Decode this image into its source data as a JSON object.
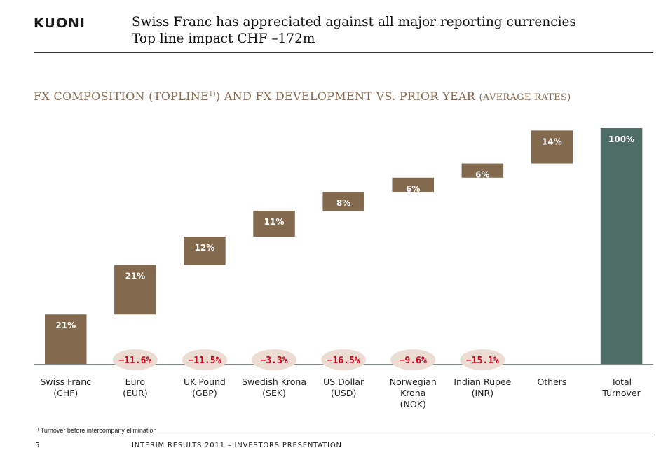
{
  "header": {
    "logo": "KUONI",
    "title_line1": "Swiss Franc has appreciated against all major reporting currencies",
    "title_line2": "Top line impact CHF –172m"
  },
  "section": {
    "heading_main": "FX COMPOSITION (TOPLINE",
    "heading_sup": "1)",
    "heading_rest": ") AND FX DEVELOPMENT VS. PRIOR YEAR ",
    "heading_small": "(AVERAGE RATES)"
  },
  "chart_data": {
    "type": "bar",
    "subtype": "waterfall",
    "unit": "%",
    "categories": [
      [
        "Swiss Franc",
        "(CHF)"
      ],
      [
        "Euro",
        "(EUR)"
      ],
      [
        "UK Pound",
        "(GBP)"
      ],
      [
        "Swedish Krona",
        "(SEK)"
      ],
      [
        "US Dollar",
        "(USD)"
      ],
      [
        "Norwegian",
        "Krona",
        "(NOK)"
      ],
      [
        "Indian Rupee",
        "(INR)"
      ],
      [
        "Others"
      ],
      [
        "Total",
        "Turnover"
      ]
    ],
    "values": [
      21,
      21,
      12,
      11,
      8,
      6,
      6,
      14,
      100
    ],
    "bar_labels": [
      "21%",
      "21%",
      "12%",
      "11%",
      "8%",
      "6%",
      "6%",
      "14%",
      "100%"
    ],
    "fx_development": [
      "",
      "−11.6%",
      "−11.5%",
      "−3.3%",
      "−16.5%",
      "−9.6%",
      "−15.1%",
      "",
      ""
    ],
    "ylim": [
      0,
      100
    ],
    "colors": {
      "bar": "#836a4e",
      "total": "#4e6d66",
      "fx_ellipse": "#ecdcd2",
      "fx_text": "#d4001c"
    }
  },
  "footnote": {
    "sup": "1)",
    "text": " Turnover before intercompany elimination"
  },
  "footer": {
    "page_number": "5",
    "text": "INTERIM RESULTS 2011 – INVESTORS PRESENTATION"
  }
}
